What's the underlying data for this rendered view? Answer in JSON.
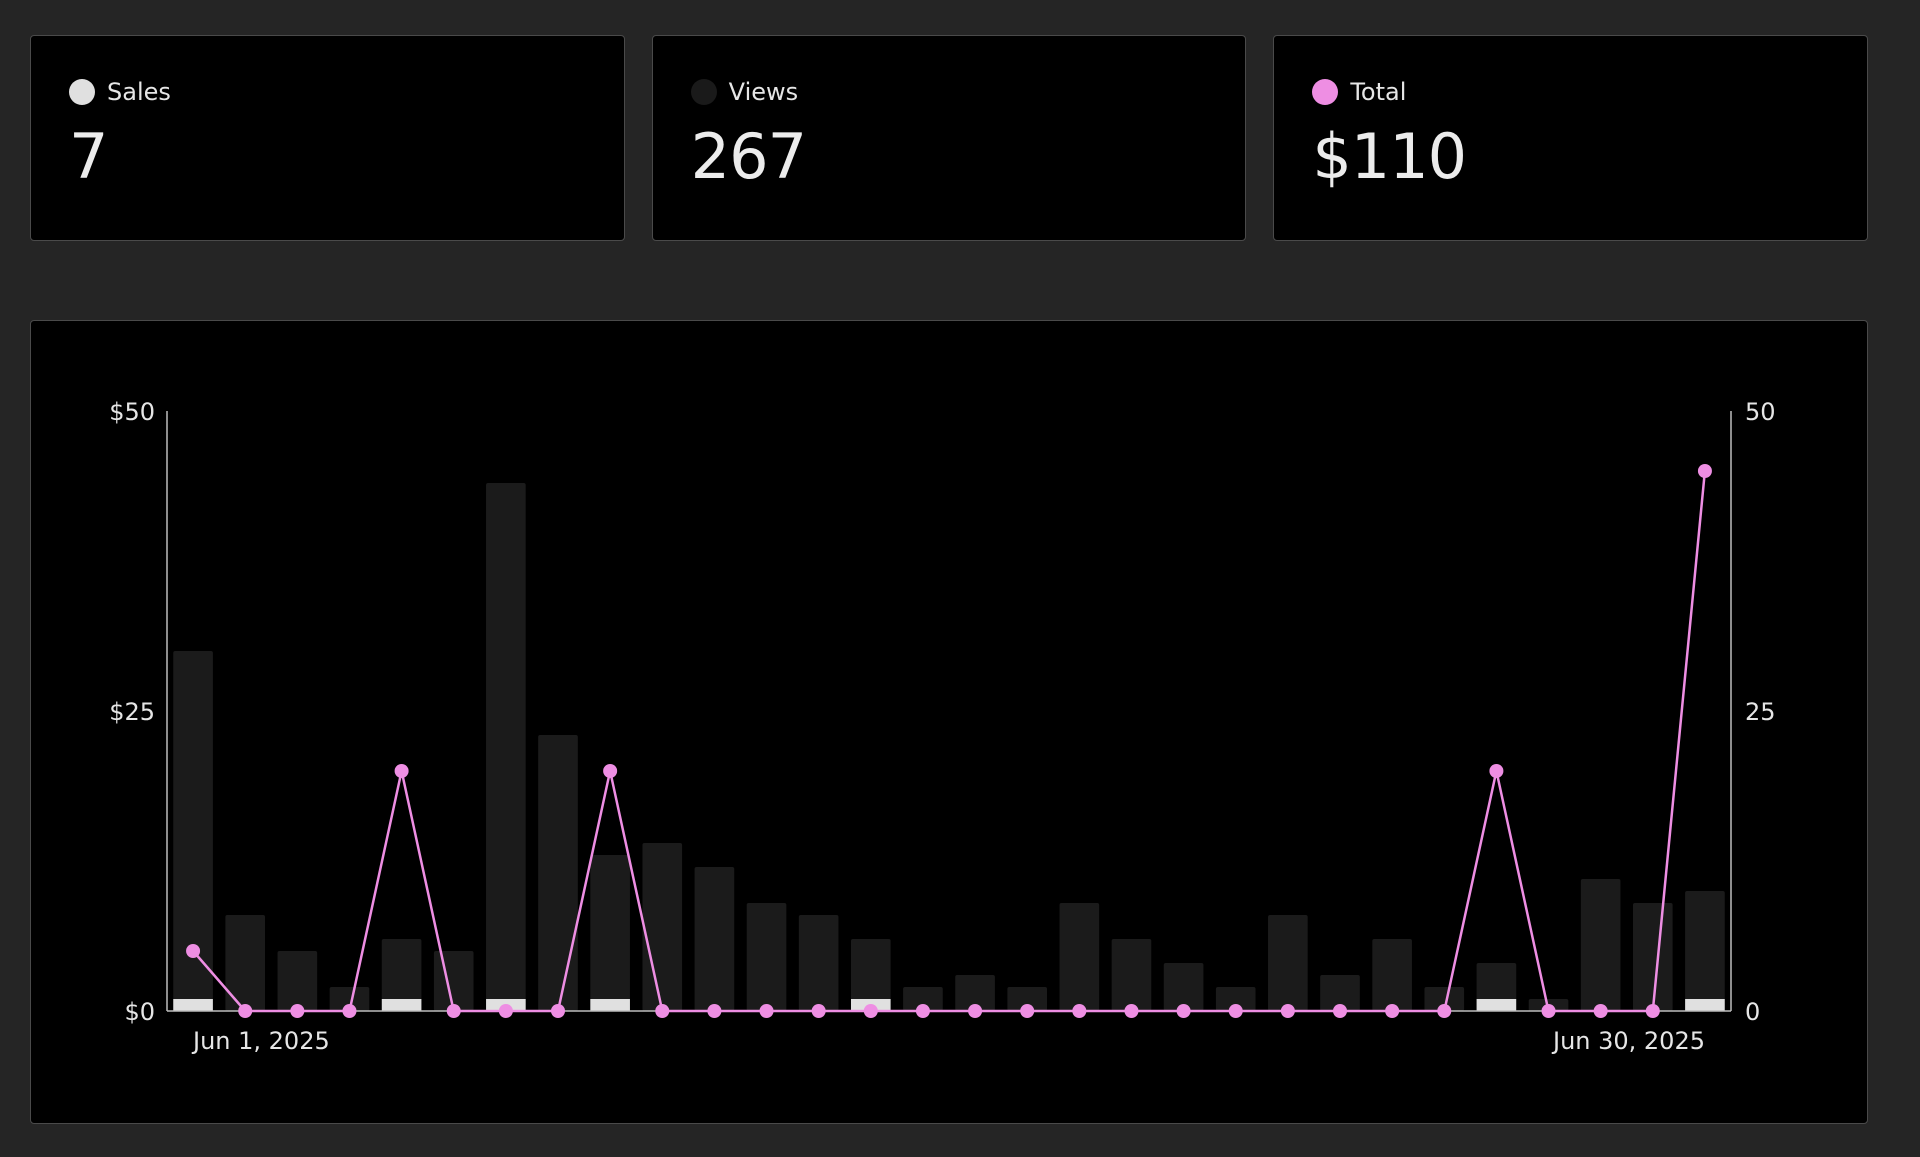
{
  "cards": [
    {
      "label": "Sales",
      "value": "7",
      "color": "#e0e0e0"
    },
    {
      "label": "Views",
      "value": "267",
      "color": "#1a1a1a"
    },
    {
      "label": "Total",
      "value": "$110",
      "color": "#ee8ee3"
    }
  ],
  "chart_data": {
    "type": "bar",
    "x_start_label": "Jun 1, 2025",
    "x_end_label": "Jun 30, 2025",
    "y_left": {
      "ticks": [
        "$0",
        "$25",
        "$50"
      ],
      "ylim": [
        0,
        50
      ]
    },
    "y_right": {
      "ticks": [
        "0",
        "25",
        "50"
      ],
      "ylim": [
        0,
        50
      ]
    },
    "series": [
      {
        "name": "Views",
        "type": "bar",
        "axis": "right",
        "color": "#1b1b1b",
        "values": [
          30,
          8,
          5,
          2,
          6,
          5,
          44,
          23,
          13,
          14,
          12,
          9,
          8,
          6,
          2,
          3,
          2,
          9,
          6,
          4,
          2,
          8,
          3,
          6,
          2,
          4,
          1,
          11,
          9,
          10
        ]
      },
      {
        "name": "Sales",
        "type": "bar",
        "axis": "right",
        "color": "#e0e0e0",
        "values": [
          1,
          0,
          0,
          0,
          1,
          0,
          1,
          0,
          1,
          0,
          0,
          0,
          0,
          1,
          0,
          0,
          0,
          0,
          0,
          0,
          0,
          0,
          0,
          0,
          0,
          1,
          0,
          0,
          0,
          1
        ]
      },
      {
        "name": "Total",
        "type": "line",
        "axis": "left",
        "color": "#ee8ee3",
        "values": [
          5,
          0,
          0,
          0,
          20,
          0,
          0,
          0,
          20,
          0,
          0,
          0,
          0,
          0,
          0,
          0,
          0,
          0,
          0,
          0,
          0,
          0,
          0,
          0,
          0,
          20,
          0,
          0,
          0,
          45
        ]
      }
    ]
  }
}
